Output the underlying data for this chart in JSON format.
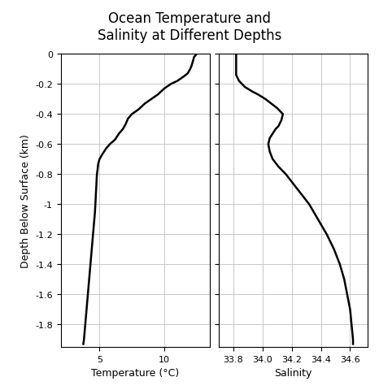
{
  "title": "Ocean Temperature and\nSalinity at Different Depths",
  "ylabel": "Depth Below Surface (km)",
  "xlabel_temp": "Temperature (°C)",
  "xlabel_sal": "Salinity",
  "depth_ylim": [
    -1.95,
    0.0
  ],
  "temp_xlim": [
    2.0,
    13.5
  ],
  "sal_xlim": [
    33.7,
    34.72
  ],
  "temp_xticks": [
    5,
    10
  ],
  "sal_xticks": [
    33.8,
    34.0,
    34.2,
    34.4,
    34.6
  ],
  "yticks": [
    -1.8,
    -1.6,
    -1.4,
    -1.2,
    -1.0,
    -0.8,
    -0.6,
    -0.4,
    -0.2,
    0
  ],
  "yticklabels": [
    "-1.8",
    "-1.6",
    "-1.4",
    "-1.2",
    "-1",
    "-0.8",
    "-0.6",
    "-0.4",
    "-0.2",
    "0"
  ],
  "temp_data": {
    "depth": [
      0.0,
      -0.02,
      -0.05,
      -0.08,
      -0.1,
      -0.13,
      -0.15,
      -0.18,
      -0.2,
      -0.23,
      -0.27,
      -0.3,
      -0.33,
      -0.37,
      -0.4,
      -0.43,
      -0.47,
      -0.5,
      -0.53,
      -0.57,
      -0.6,
      -0.63,
      -0.67,
      -0.7,
      -0.73,
      -0.77,
      -0.8,
      -0.83,
      -0.87,
      -0.9,
      -0.93,
      -0.97,
      -1.0,
      -1.05,
      -1.1,
      -1.15,
      -1.2,
      -1.3,
      -1.4,
      -1.5,
      -1.6,
      -1.7,
      -1.8,
      -1.9,
      -1.93
    ],
    "temp": [
      12.5,
      12.3,
      12.2,
      12.1,
      12.0,
      11.8,
      11.5,
      11.0,
      10.5,
      10.0,
      9.5,
      9.0,
      8.5,
      8.0,
      7.5,
      7.2,
      7.0,
      6.8,
      6.5,
      6.2,
      5.8,
      5.5,
      5.2,
      5.0,
      4.9,
      4.85,
      4.8,
      4.78,
      4.76,
      4.74,
      4.72,
      4.7,
      4.68,
      4.65,
      4.6,
      4.55,
      4.5,
      4.4,
      4.3,
      4.2,
      4.1,
      4.0,
      3.9,
      3.8,
      3.75
    ]
  },
  "sal_data": {
    "depth": [
      0.0,
      -0.02,
      -0.04,
      -0.06,
      -0.08,
      -0.1,
      -0.12,
      -0.14,
      -0.16,
      -0.18,
      -0.2,
      -0.22,
      -0.25,
      -0.27,
      -0.3,
      -0.33,
      -0.36,
      -0.4,
      -0.44,
      -0.48,
      -0.5,
      -0.53,
      -0.56,
      -0.6,
      -0.65,
      -0.7,
      -0.75,
      -0.8,
      -0.9,
      -1.0,
      -1.1,
      -1.2,
      -1.3,
      -1.4,
      -1.5,
      -1.6,
      -1.7,
      -1.8,
      -1.9,
      -1.93
    ],
    "sal": [
      33.82,
      33.82,
      33.82,
      33.82,
      33.82,
      33.82,
      33.82,
      33.82,
      33.83,
      33.84,
      33.86,
      33.88,
      33.93,
      33.97,
      34.02,
      34.06,
      34.1,
      34.14,
      34.13,
      34.11,
      34.09,
      34.07,
      34.05,
      34.04,
      34.05,
      34.07,
      34.11,
      34.16,
      34.24,
      34.32,
      34.38,
      34.44,
      34.49,
      34.53,
      34.56,
      34.58,
      34.6,
      34.61,
      34.62,
      34.62
    ]
  },
  "line_color": "#000000",
  "line_width": 1.8,
  "bg_color": "#ffffff",
  "grid_color": "#c8c8c8",
  "title_fontsize": 12,
  "label_fontsize": 9,
  "tick_fontsize": 8
}
